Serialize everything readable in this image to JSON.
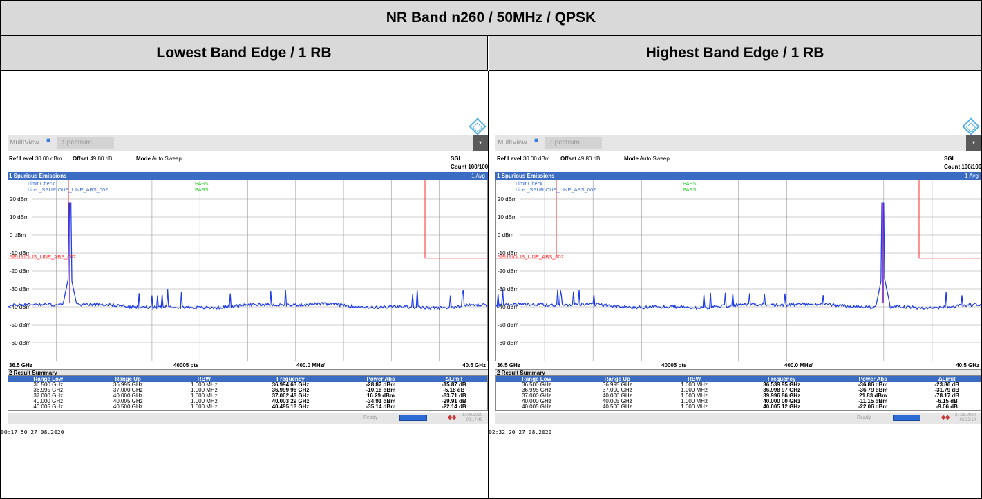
{
  "title": "NR Band n260 / 50MHz / QPSK",
  "panels": [
    {
      "heading": "Lowest Band Edge / 1 RB",
      "topbar": {
        "multiview": "MultiView",
        "spectrum": "Spectrum"
      },
      "params": {
        "ref_level_label": "Ref Level",
        "ref_level": "30.00 dBm",
        "offset_label": "Offset",
        "offset": "49.80 dB",
        "mode_label": "Mode",
        "mode": "Auto Sweep",
        "sgl": "SGL",
        "count": "Count 100/100"
      },
      "window": {
        "title": "1 Spurious Emissions",
        "avg": "1 Avg"
      },
      "limit_check": {
        "label": "Limit Check",
        "line_label": "Line _SPURIOUS_LINE_ABS_002",
        "result1": "PASS",
        "result2": "PASS",
        "line_name": "SPURIOUS_LINE_ABS_002"
      },
      "y_ticks": [
        "20 dBm",
        "10 dBm",
        "0 dBm",
        "-10 dBm",
        "-20 dBm",
        "-30 dBm",
        "-40 dBm",
        "-50 dBm",
        "-60 dBm"
      ],
      "axis": {
        "start": "36.5 GHz",
        "points": "40005 pts",
        "span": "400.0 MHz/",
        "stop": "40.5 GHz"
      },
      "result_summary": {
        "title": "2 Result Summary",
        "headers": [
          "Range Low",
          "Range Up",
          "RBW",
          "Frequency",
          "Power Abs",
          "ΔLimit"
        ],
        "rows": [
          [
            "36.500 GHz",
            "36.995 GHz",
            "1.000 MHz",
            "36.994 63 GHz",
            "-28.87 dBm",
            "-15.87 dB"
          ],
          [
            "36.995 GHz",
            "37.000 GHz",
            "1.000 MHz",
            "36.999 96 GHz",
            "-10.18 dBm",
            "-5.18 dB"
          ],
          [
            "37.000 GHz",
            "40.000 GHz",
            "1.000 MHz",
            "37.002 48 GHz",
            "16.29 dBm",
            "-83.71 dB"
          ],
          [
            "40.000 GHz",
            "40.005 GHz",
            "1.000 MHz",
            "40.003 29 GHz",
            "-34.91 dBm",
            "-29.91 dB"
          ],
          [
            "40.005 GHz",
            "40.500 GHz",
            "1.000 MHz",
            "40.495 18 GHz",
            "-35.14 dBm",
            "-22.14 dB"
          ]
        ]
      },
      "status": {
        "ready": "Ready",
        "date": "27.08.2020",
        "time": "00:17:49"
      },
      "stamp": "00:17:50  27.08.2020",
      "trace": {
        "peak_fraction": 0.22,
        "limit_step_fraction": 0.9775
      }
    },
    {
      "heading": "Highest Band Edge / 1 RB",
      "topbar": {
        "multiview": "MultiView",
        "spectrum": "Spectrum"
      },
      "params": {
        "ref_level_label": "Ref Level",
        "ref_level": "30.00 dBm",
        "offset_label": "Offset",
        "offset": "49.80 dB",
        "mode_label": "Mode",
        "mode": "Auto Sweep",
        "sgl": "SGL",
        "count": "Count 100/100"
      },
      "window": {
        "title": "1 Spurious Emissions",
        "avg": "1 Avg"
      },
      "limit_check": {
        "label": "Limit Check",
        "line_label": "Line _SPURIOUS_LINE_ABS_002",
        "result1": "PASS",
        "result2": "PASS",
        "line_name": "SPURIOUS_LINE_ABS_002"
      },
      "y_ticks": [
        "20 dBm",
        "10 dBm",
        "0 dBm",
        "-10 dBm",
        "-20 dBm",
        "-30 dBm",
        "-40 dBm",
        "-50 dBm",
        "-60 dBm"
      ],
      "axis": {
        "start": "36.5 GHz",
        "points": "40005 pts",
        "span": "400.0 MHz/",
        "stop": "40.5 GHz"
      },
      "result_summary": {
        "title": "2 Result Summary",
        "headers": [
          "Range Low",
          "Range Up",
          "RBW",
          "Frequency",
          "Power Abs",
          "ΔLimit"
        ],
        "rows": [
          [
            "36.500 GHz",
            "36.995 GHz",
            "1.000 MHz",
            "36.539 95 GHz",
            "-36.86 dBm",
            "-23.86 dB"
          ],
          [
            "36.995 GHz",
            "37.000 GHz",
            "1.000 MHz",
            "36.998 97 GHz",
            "-36.79 dBm",
            "-31.79 dB"
          ],
          [
            "37.000 GHz",
            "40.000 GHz",
            "1.000 MHz",
            "39.996 86 GHz",
            "21.83 dBm",
            "-78.17 dB"
          ],
          [
            "40.000 GHz",
            "40.005 GHz",
            "1.000 MHz",
            "40.000 00 GHz",
            "-11.15 dBm",
            "-6.15 dB"
          ],
          [
            "40.005 GHz",
            "40.500 GHz",
            "1.000 MHz",
            "40.005 12 GHz",
            "-22.06 dBm",
            "-9.06 dB"
          ]
        ]
      },
      "status": {
        "ready": "Ready",
        "date": "27.08.2020",
        "time": "02:32:19"
      },
      "stamp": "02:32:20  27.08.2020",
      "trace": {
        "peak_fraction": 0.87,
        "limit_step_fraction": 0.0225
      }
    }
  ],
  "colors": {
    "trace": "#1f3ee6",
    "limit": "#ff2a2a",
    "pass": "#22cc22",
    "window_header": "#3b6cc4",
    "limit_text": "#3a6fd8"
  }
}
